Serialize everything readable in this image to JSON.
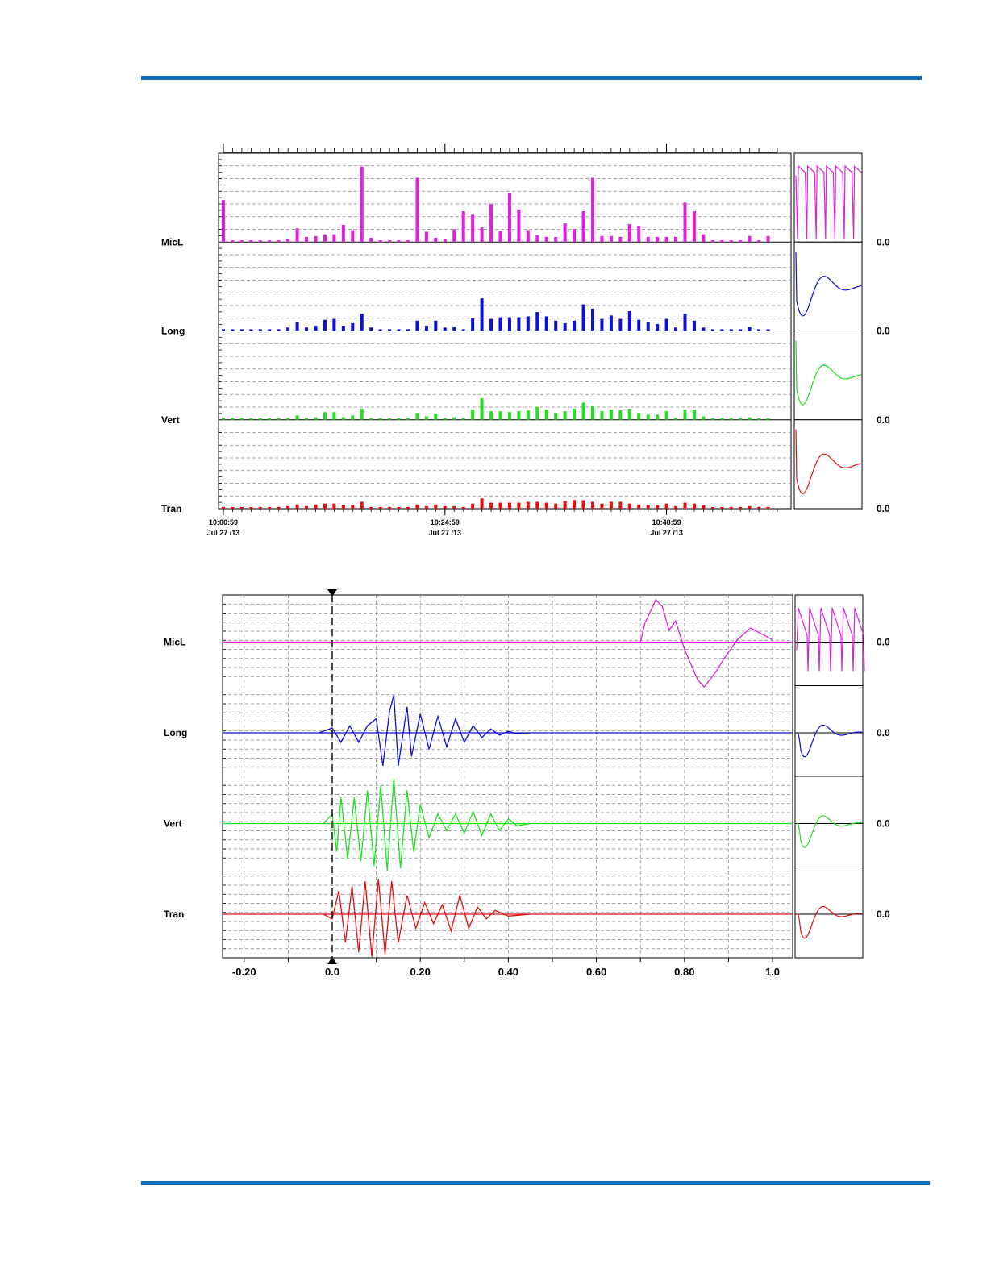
{
  "colors": {
    "rule": "#0d6bb8",
    "MicL": "#e020e0",
    "Long": "#1010d0",
    "Vert": "#20e020",
    "Tran": "#e01010"
  },
  "chart_data": [
    {
      "type": "bar",
      "title": "",
      "channels": [
        "MicL",
        "Long",
        "Vert",
        "Tran"
      ],
      "zero_label": "0.0",
      "time_ticks": [
        {
          "time": "10:00:59",
          "date": "Jul 27 /13"
        },
        {
          "time": "10:24:59",
          "date": "Jul 27 /13"
        },
        {
          "time": "10:48:59",
          "date": "Jul 27 /13"
        }
      ],
      "grid": true,
      "series": [
        {
          "name": "MicL",
          "values": [
            0.49,
            0.02,
            0.02,
            0.02,
            0.02,
            0.02,
            0.02,
            0.04,
            0.16,
            0.06,
            0.07,
            0.09,
            0.09,
            0.2,
            0.14,
            0.88,
            0.05,
            0.02,
            0.02,
            0.02,
            0.02,
            0.75,
            0.12,
            0.05,
            0.04,
            0.15,
            0.36,
            0.32,
            0.17,
            0.44,
            0.13,
            0.57,
            0.38,
            0.14,
            0.08,
            0.06,
            0.06,
            0.22,
            0.15,
            0.36,
            0.75,
            0.07,
            0.07,
            0.06,
            0.21,
            0.19,
            0.06,
            0.06,
            0.06,
            0.06,
            0.46,
            0.36,
            0.09,
            0.02,
            0.02,
            0.02,
            0.02,
            0.07,
            0.02,
            0.07
          ]
        },
        {
          "name": "Long",
          "values": [
            0.02,
            0.02,
            0.02,
            0.02,
            0.02,
            0.02,
            0.02,
            0.04,
            0.1,
            0.04,
            0.06,
            0.13,
            0.14,
            0.06,
            0.09,
            0.2,
            0.04,
            0.02,
            0.02,
            0.02,
            0.02,
            0.12,
            0.06,
            0.12,
            0.04,
            0.05,
            0.02,
            0.15,
            0.38,
            0.14,
            0.16,
            0.16,
            0.16,
            0.17,
            0.22,
            0.17,
            0.12,
            0.09,
            0.12,
            0.31,
            0.26,
            0.14,
            0.18,
            0.14,
            0.23,
            0.13,
            0.1,
            0.08,
            0.14,
            0.04,
            0.2,
            0.12,
            0.04,
            0.02,
            0.02,
            0.02,
            0.02,
            0.05,
            0.02,
            0.02
          ]
        },
        {
          "name": "Vert",
          "values": [
            0.01,
            0.01,
            0.01,
            0.01,
            0.01,
            0.01,
            0.01,
            0.02,
            0.05,
            0.02,
            0.03,
            0.09,
            0.09,
            0.03,
            0.05,
            0.13,
            0.02,
            0.01,
            0.01,
            0.01,
            0.01,
            0.08,
            0.04,
            0.07,
            0.02,
            0.03,
            0.01,
            0.12,
            0.25,
            0.1,
            0.1,
            0.09,
            0.1,
            0.11,
            0.15,
            0.12,
            0.08,
            0.1,
            0.13,
            0.2,
            0.16,
            0.1,
            0.12,
            0.11,
            0.13,
            0.08,
            0.06,
            0.06,
            0.1,
            0.02,
            0.12,
            0.12,
            0.04,
            0.01,
            0.01,
            0.01,
            0.01,
            0.03,
            0.01,
            0.01
          ]
        },
        {
          "name": "Tran",
          "values": [
            0.02,
            0.02,
            0.02,
            0.02,
            0.02,
            0.02,
            0.02,
            0.03,
            0.05,
            0.03,
            0.05,
            0.06,
            0.06,
            0.04,
            0.04,
            0.08,
            0.02,
            0.02,
            0.02,
            0.02,
            0.02,
            0.05,
            0.03,
            0.05,
            0.03,
            0.03,
            0.02,
            0.06,
            0.12,
            0.07,
            0.07,
            0.07,
            0.07,
            0.08,
            0.08,
            0.07,
            0.06,
            0.09,
            0.1,
            0.1,
            0.08,
            0.06,
            0.08,
            0.08,
            0.06,
            0.05,
            0.04,
            0.04,
            0.06,
            0.03,
            0.07,
            0.06,
            0.04,
            0.02,
            0.02,
            0.02,
            0.02,
            0.03,
            0.02,
            0.02
          ]
        }
      ]
    },
    {
      "type": "line",
      "title": "",
      "channels": [
        "MicL",
        "Long",
        "Vert",
        "Tran"
      ],
      "zero_label": "0.0",
      "xlim": [
        -0.25,
        1.0
      ],
      "x_tick_labels": [
        "-0.20",
        "0.0",
        "0.20",
        "0.40",
        "0.60",
        "0.80",
        "1.0"
      ],
      "x_tick_values": [
        -0.2,
        0.0,
        0.2,
        0.4,
        0.6,
        0.8,
        1.0
      ],
      "trigger_time": 0.0,
      "grid": true,
      "series": [
        {
          "name": "MicL",
          "x": [
            -0.25,
            0.7,
            0.71,
            0.735,
            0.75,
            0.765,
            0.78,
            0.8,
            0.83,
            0.845,
            0.87,
            0.89,
            0.92,
            0.95,
            0.97,
            1.0
          ],
          "y": [
            0,
            0,
            0.4,
            0.9,
            0.75,
            0.25,
            0.45,
            -0.15,
            -0.8,
            -0.95,
            -0.65,
            -0.35,
            0.05,
            0.3,
            0.2,
            0.05
          ]
        },
        {
          "name": "Long",
          "x": [
            -0.03,
            0.0,
            0.02,
            0.04,
            0.06,
            0.08,
            0.1,
            0.115,
            0.13,
            0.14,
            0.15,
            0.17,
            0.18,
            0.2,
            0.22,
            0.24,
            0.26,
            0.28,
            0.3,
            0.32,
            0.34,
            0.36,
            0.38,
            0.4,
            0.42,
            0.45
          ],
          "y": [
            0,
            0.1,
            -0.2,
            0.15,
            -0.2,
            0.15,
            0.3,
            -0.7,
            0.45,
            0.8,
            -0.7,
            0.55,
            -0.5,
            0.4,
            -0.35,
            0.35,
            -0.3,
            0.3,
            -0.2,
            0.15,
            -0.1,
            0.08,
            -0.05,
            0.03,
            -0.02,
            0
          ]
        },
        {
          "name": "Vert",
          "x": [
            -0.02,
            0.0,
            0.01,
            0.02,
            0.035,
            0.05,
            0.065,
            0.08,
            0.095,
            0.11,
            0.125,
            0.14,
            0.155,
            0.17,
            0.185,
            0.2,
            0.22,
            0.24,
            0.26,
            0.28,
            0.3,
            0.32,
            0.34,
            0.36,
            0.38,
            0.4,
            0.42,
            0.45
          ],
          "y": [
            0,
            0.2,
            -0.6,
            0.55,
            -0.75,
            0.55,
            -0.8,
            0.7,
            -0.9,
            0.8,
            -1.0,
            0.95,
            -0.95,
            0.7,
            -0.6,
            0.4,
            -0.3,
            0.2,
            -0.15,
            0.2,
            -0.2,
            0.25,
            -0.25,
            0.2,
            -0.15,
            0.1,
            -0.05,
            0
          ]
        },
        {
          "name": "Tran",
          "x": [
            -0.02,
            0.0,
            0.015,
            0.03,
            0.045,
            0.06,
            0.075,
            0.09,
            0.105,
            0.12,
            0.135,
            0.15,
            0.17,
            0.19,
            0.21,
            0.23,
            0.25,
            0.27,
            0.29,
            0.31,
            0.33,
            0.35,
            0.37,
            0.4,
            0.45
          ],
          "y": [
            0,
            -0.1,
            0.5,
            -0.6,
            0.6,
            -0.8,
            0.7,
            -0.9,
            0.75,
            -0.85,
            0.7,
            -0.6,
            0.4,
            -0.3,
            0.25,
            -0.2,
            0.2,
            -0.35,
            0.4,
            -0.3,
            0.15,
            -0.1,
            0.08,
            -0.04,
            0
          ]
        }
      ]
    }
  ]
}
